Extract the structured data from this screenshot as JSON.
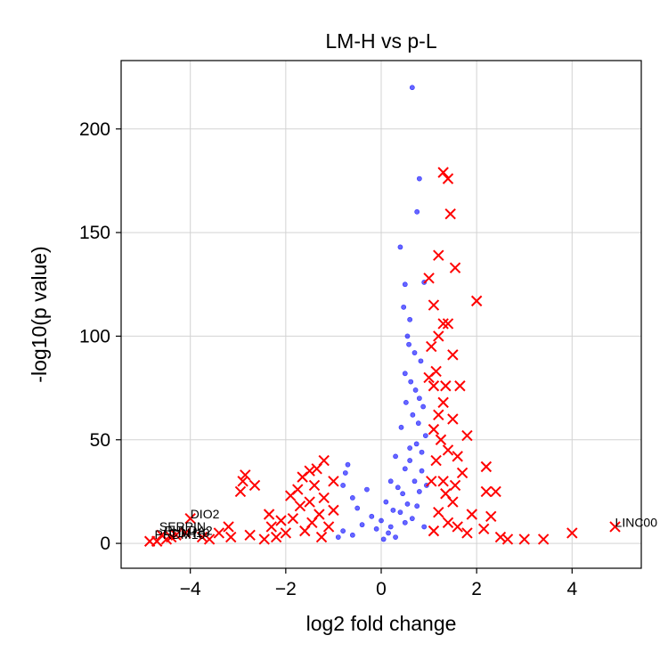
{
  "chart_data": {
    "type": "scatter",
    "title": "LM-H vs p-L",
    "xlabel": "log2 fold change",
    "ylabel": "-log10(p value)",
    "xlim": [
      -5.45,
      5.45
    ],
    "ylim": [
      -12,
      233
    ],
    "x_ticks": [
      -4,
      -2,
      0,
      2,
      4
    ],
    "x_tick_labels": [
      "−4",
      "−2",
      "0",
      "2",
      "4"
    ],
    "y_ticks": [
      0,
      50,
      100,
      150,
      200
    ],
    "y_tick_labels": [
      "0",
      "50",
      "100",
      "150",
      "200"
    ],
    "grid": true,
    "colors": {
      "not_significant": "#0000ff",
      "significant": "#ff0000"
    },
    "series": [
      {
        "marker": "dot",
        "color": "#0000ff",
        "points": [
          [
            0.65,
            220
          ],
          [
            0.8,
            176
          ],
          [
            0.75,
            160
          ],
          [
            0.4,
            143
          ],
          [
            0.5,
            125
          ],
          [
            0.9,
            126
          ],
          [
            0.47,
            114
          ],
          [
            0.6,
            108
          ],
          [
            0.55,
            100
          ],
          [
            0.58,
            96
          ],
          [
            0.7,
            92
          ],
          [
            0.83,
            88
          ],
          [
            0.5,
            82
          ],
          [
            0.62,
            78
          ],
          [
            0.72,
            74
          ],
          [
            0.8,
            70
          ],
          [
            0.52,
            68
          ],
          [
            0.88,
            66
          ],
          [
            0.66,
            62
          ],
          [
            0.78,
            58
          ],
          [
            0.42,
            56
          ],
          [
            0.93,
            52
          ],
          [
            0.74,
            48
          ],
          [
            0.6,
            46
          ],
          [
            0.85,
            44
          ],
          [
            0.3,
            42
          ],
          [
            -0.7,
            38
          ],
          [
            -0.75,
            34
          ],
          [
            -0.8,
            28
          ],
          [
            -0.6,
            22
          ],
          [
            0.2,
            30
          ],
          [
            0.35,
            27
          ],
          [
            0.5,
            36
          ],
          [
            0.45,
            24
          ],
          [
            0.1,
            20
          ],
          [
            -0.3,
            26
          ],
          [
            -0.5,
            17
          ],
          [
            -0.2,
            13
          ],
          [
            0.0,
            11
          ],
          [
            0.25,
            16
          ],
          [
            -0.4,
            9
          ],
          [
            0.55,
            19
          ],
          [
            0.7,
            30
          ],
          [
            0.85,
            35
          ],
          [
            0.95,
            28
          ],
          [
            0.8,
            25
          ],
          [
            0.6,
            40
          ],
          [
            0.4,
            15
          ],
          [
            -0.1,
            7
          ],
          [
            0.15,
            5
          ],
          [
            -0.6,
            4
          ],
          [
            -0.8,
            6
          ],
          [
            0.3,
            3
          ],
          [
            0.65,
            12
          ],
          [
            0.9,
            8
          ],
          [
            0.75,
            18
          ],
          [
            0.5,
            10
          ],
          [
            0.2,
            8
          ],
          [
            -0.9,
            3
          ],
          [
            0.05,
            2
          ]
        ]
      },
      {
        "marker": "x",
        "color": "#ff0000",
        "points": [
          [
            1.3,
            179
          ],
          [
            1.4,
            176
          ],
          [
            1.45,
            159
          ],
          [
            1.2,
            139
          ],
          [
            1.55,
            133
          ],
          [
            1.0,
            128
          ],
          [
            2.0,
            117
          ],
          [
            1.1,
            115
          ],
          [
            1.3,
            106
          ],
          [
            1.4,
            106
          ],
          [
            1.2,
            100
          ],
          [
            1.05,
            95
          ],
          [
            1.5,
            91
          ],
          [
            1.15,
            83
          ],
          [
            1.0,
            80
          ],
          [
            1.1,
            76
          ],
          [
            1.35,
            76
          ],
          [
            1.65,
            76
          ],
          [
            1.3,
            68
          ],
          [
            1.2,
            62
          ],
          [
            1.5,
            60
          ],
          [
            1.1,
            55
          ],
          [
            1.8,
            52
          ],
          [
            1.25,
            50
          ],
          [
            1.4,
            45
          ],
          [
            1.6,
            42
          ],
          [
            1.15,
            40
          ],
          [
            2.2,
            37
          ],
          [
            1.7,
            34
          ],
          [
            1.3,
            30
          ],
          [
            2.2,
            25
          ],
          [
            2.4,
            25
          ],
          [
            1.5,
            20
          ],
          [
            1.9,
            14
          ],
          [
            2.3,
            13
          ],
          [
            2.15,
            7
          ],
          [
            2.5,
            3
          ],
          [
            2.65,
            2
          ],
          [
            3.0,
            2
          ],
          [
            3.4,
            2
          ],
          [
            4.0,
            5
          ],
          [
            4.9,
            8
          ],
          [
            1.2,
            15
          ],
          [
            1.4,
            10
          ],
          [
            1.6,
            8
          ],
          [
            1.8,
            5
          ],
          [
            1.1,
            6
          ],
          [
            1.35,
            24
          ],
          [
            1.05,
            30
          ],
          [
            1.55,
            28
          ],
          [
            -1.2,
            40
          ],
          [
            -1.35,
            36
          ],
          [
            -1.5,
            35
          ],
          [
            -1.65,
            32
          ],
          [
            -1.0,
            30
          ],
          [
            -1.4,
            28
          ],
          [
            -1.75,
            26
          ],
          [
            -1.9,
            23
          ],
          [
            -1.2,
            22
          ],
          [
            -1.5,
            20
          ],
          [
            -1.7,
            18
          ],
          [
            -1.0,
            16
          ],
          [
            -1.3,
            14
          ],
          [
            -1.85,
            12
          ],
          [
            -1.45,
            10
          ],
          [
            -1.1,
            8
          ],
          [
            -1.6,
            6
          ],
          [
            -2.0,
            5
          ],
          [
            -2.2,
            3
          ],
          [
            -1.25,
            3
          ],
          [
            -2.45,
            2
          ],
          [
            -2.3,
            8
          ],
          [
            -2.1,
            11
          ],
          [
            -2.35,
            14
          ],
          [
            -2.85,
            33
          ],
          [
            -2.9,
            30
          ],
          [
            -2.95,
            25
          ],
          [
            -2.65,
            28
          ],
          [
            -3.2,
            8
          ],
          [
            -3.4,
            5
          ],
          [
            -3.15,
            3
          ],
          [
            -2.75,
            4
          ],
          [
            -3.6,
            2
          ],
          [
            -3.75,
            3
          ],
          [
            -4.0,
            12
          ],
          [
            -4.1,
            5
          ],
          [
            -4.3,
            4
          ],
          [
            -4.5,
            2
          ],
          [
            -4.7,
            1
          ],
          [
            -4.85,
            1
          ],
          [
            -4.6,
            4
          ],
          [
            -4.4,
            3
          ]
        ]
      }
    ],
    "annotations": [
      {
        "text": "DIO2",
        "x": -4.0,
        "y": 12
      },
      {
        "text": "LINC00",
        "x": 4.9,
        "y": 8
      }
    ],
    "clutter_labels": [
      "SERPIN",
      "PHLDA2",
      "CDH10",
      "PRDM16"
    ]
  }
}
